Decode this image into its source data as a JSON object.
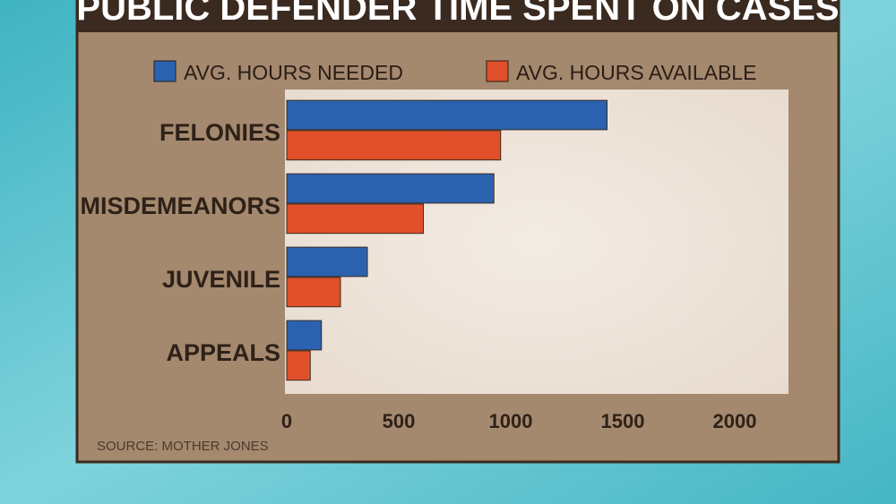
{
  "chart_data": {
    "type": "bar",
    "orientation": "horizontal",
    "title": "PUBLIC DEFENDER TIME SPENT ON CASES",
    "categories": [
      "FELONIES",
      "MISDEMEANORS",
      "JUVENILE",
      "APPEALS"
    ],
    "series": [
      {
        "name": "AVG. HOURS NEEDED",
        "color": "#2a62b0",
        "values": [
          1430,
          925,
          360,
          155
        ]
      },
      {
        "name": "AVG. HOURS AVAILABLE",
        "color": "#e0502a",
        "values": [
          955,
          610,
          240,
          105
        ]
      }
    ],
    "xlim": [
      0,
      2240
    ],
    "xticks": [
      0,
      500,
      1000,
      1500,
      2000
    ],
    "source": "SOURCE: MOTHER JONES"
  }
}
